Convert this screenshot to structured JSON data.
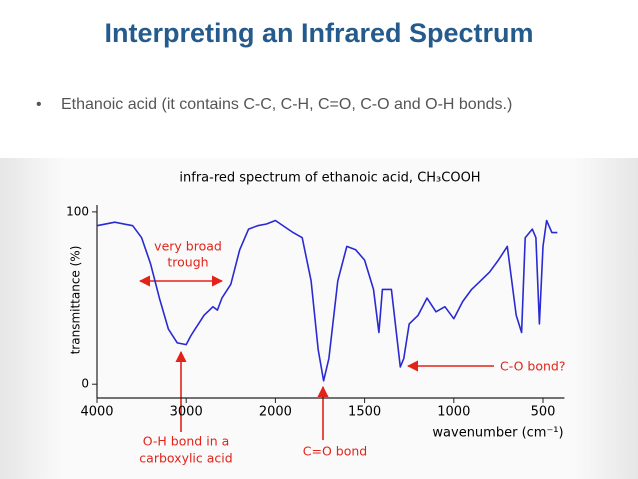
{
  "slide": {
    "title": "Interpreting an Infrared Spectrum",
    "bullets": [
      "Ethanoic acid (it contains C-C, C-H, C=O, C-O and O-H bonds.)"
    ]
  },
  "chart_data": {
    "type": "line",
    "title": "infra-red spectrum of ethanoic acid,  CH₃COOH",
    "x_label": "wavenumber (cm⁻¹)",
    "y_label": "transmittance (%)",
    "x": [
      4000,
      3800,
      3600,
      3500,
      3400,
      3300,
      3200,
      3100,
      3000,
      2950,
      2900,
      2850,
      2800,
      2700,
      2650,
      2600,
      2500,
      2400,
      2300,
      2200,
      2100,
      2000,
      1900,
      1850,
      1800,
      1760,
      1730,
      1700,
      1650,
      1600,
      1550,
      1500,
      1450,
      1420,
      1400,
      1350,
      1300,
      1280,
      1250,
      1200,
      1150,
      1100,
      1050,
      1000,
      950,
      900,
      850,
      800,
      750,
      700,
      650,
      620,
      600,
      560,
      540,
      520,
      500,
      480,
      450,
      420
    ],
    "values": [
      92,
      94,
      92,
      85,
      70,
      50,
      32,
      24,
      23,
      28,
      32,
      36,
      40,
      45,
      43,
      50,
      58,
      78,
      90,
      92,
      93,
      95,
      88,
      85,
      60,
      20,
      2,
      15,
      60,
      80,
      78,
      72,
      55,
      30,
      55,
      55,
      10,
      15,
      35,
      40,
      50,
      42,
      45,
      38,
      48,
      55,
      60,
      65,
      72,
      80,
      40,
      30,
      85,
      90,
      85,
      35,
      80,
      95,
      88,
      88
    ],
    "color": "#2a2ad2",
    "xscale": "piecewise-linear",
    "xlim": [
      4000,
      380
    ],
    "xticks": [
      4000,
      3000,
      2000,
      1500,
      1000,
      500
    ],
    "ylim": [
      -8,
      104
    ],
    "yticks": [
      0,
      100
    ],
    "annotations": [
      {
        "lines": [
          "very broad",
          "trough"
        ]
      },
      {
        "lines": [
          "O-H bond in a",
          "carboxylic acid"
        ]
      },
      {
        "lines": [
          "C=O bond"
        ]
      },
      {
        "lines": [
          "C-O bond?"
        ]
      }
    ]
  }
}
